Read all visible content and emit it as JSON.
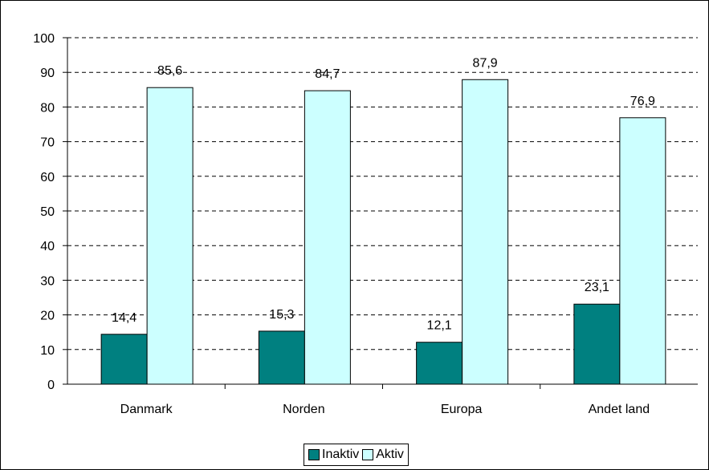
{
  "chart_data": {
    "type": "bar",
    "categories": [
      "Danmark",
      "Norden",
      "Europa",
      "Andet land"
    ],
    "series": [
      {
        "name": "Inaktiv",
        "values": [
          14.4,
          15.3,
          12.1,
          23.1
        ],
        "labels": [
          "14,4",
          "15,3",
          "12,1",
          "23,1"
        ],
        "color": "#008080"
      },
      {
        "name": "Aktiv",
        "values": [
          85.6,
          84.7,
          87.9,
          76.9
        ],
        "labels": [
          "85,6",
          "84,7",
          "87,9",
          "76,9"
        ],
        "color": "#CCFFFF"
      }
    ],
    "ylim": [
      0,
      100
    ],
    "yticks": [
      0,
      10,
      20,
      30,
      40,
      50,
      60,
      70,
      80,
      90,
      100
    ],
    "grid": true,
    "grid_style": "dashed",
    "legend_position": "bottom",
    "title": "",
    "xlabel": "",
    "ylabel": ""
  }
}
